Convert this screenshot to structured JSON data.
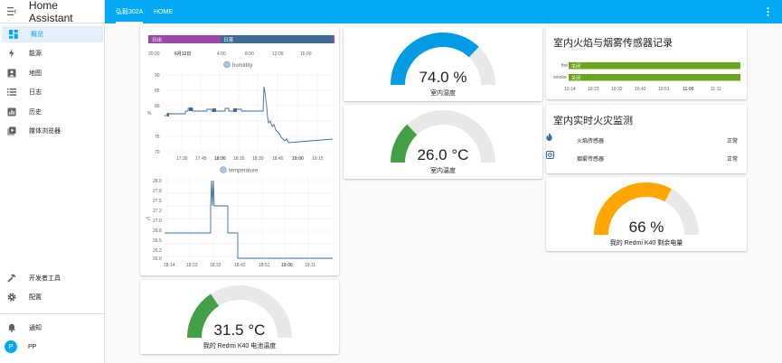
{
  "app": {
    "title": "Home Assistant",
    "user_initial": "P",
    "user_name": "PP"
  },
  "sidebar": {
    "items": [
      {
        "id": "overview",
        "label": "概览",
        "icon": "view-dashboard-icon"
      },
      {
        "id": "energy",
        "label": "能源",
        "icon": "lightning-icon"
      },
      {
        "id": "map",
        "label": "地图",
        "icon": "map-person-icon"
      },
      {
        "id": "logbook",
        "label": "日志",
        "icon": "list-icon"
      },
      {
        "id": "history",
        "label": "历史",
        "icon": "chart-box-icon"
      },
      {
        "id": "media",
        "label": "媒体浏览器",
        "icon": "play-box-icon"
      }
    ],
    "bottom": {
      "developer_tools": "开发者工具",
      "settings": "配置",
      "notifications": "通知"
    }
  },
  "topbar": {
    "tabs": [
      "弘毅302A",
      "HOME"
    ]
  },
  "cards": {
    "history_graph": {
      "sun_bar": {
        "above": "日落",
        "below": "日出"
      },
      "sun_ticks": [
        "20:00",
        "6月12日",
        "4:00",
        "8:00",
        "12:00",
        "16:00"
      ],
      "humidity": {
        "title": "humidity",
        "unit": "%",
        "y_ticks": [
          "90",
          "85",
          "80",
          "75",
          "70"
        ],
        "x_ticks": [
          "17:30",
          "17:45",
          "18:00",
          "18:15",
          "18:30",
          "18:45",
          "19:00",
          "19:15"
        ]
      },
      "temperature": {
        "title": "temperature",
        "unit": "°C",
        "y_ticks": [
          "28.0",
          "27.8",
          "27.5",
          "27.2",
          "27.0",
          "26.8",
          "26.5",
          "26.2",
          "26.0"
        ],
        "x_ticks": [
          "18:14",
          "18:23",
          "18:32",
          "18:42",
          "18:51",
          "19:00",
          "19:11"
        ]
      }
    },
    "gauges": [
      {
        "id": "humidity",
        "value": "74.0 %",
        "name": "室内湿度",
        "fraction": 0.74,
        "color": "#039be5"
      },
      {
        "id": "temperature",
        "value": "26.0 °C",
        "name": "室内温度",
        "fraction": 0.26,
        "color": "#43a047"
      },
      {
        "id": "battery",
        "value": "66 %",
        "name": "我的 Redmi K40 剩余电量",
        "fraction": 0.66,
        "color": "#ffa600"
      },
      {
        "id": "battery_temp",
        "value": "31.5 °C",
        "name": "我的 Redmi K40 电池温度",
        "fraction": 0.315,
        "color": "#43a047"
      }
    ],
    "fire_history": {
      "title": "室内火焰与烟雾传感器记录",
      "rows": [
        {
          "label": "fire",
          "state": "关闭"
        },
        {
          "label": "smoke",
          "state": "关闭"
        }
      ],
      "x_ticks": [
        "10:14",
        "10:23",
        "10:32",
        "10:42",
        "10:51",
        "11:00",
        "11:11"
      ],
      "bar_color": "#6aa51e"
    },
    "fire_monitor": {
      "title": "室内实时火灾监测",
      "entities": [
        {
          "name": "火焰传感器",
          "state": "正常",
          "icon": "fire-icon"
        },
        {
          "name": "烟雾传感器",
          "state": "正常",
          "icon": "smoke-detector-icon"
        }
      ]
    }
  }
}
